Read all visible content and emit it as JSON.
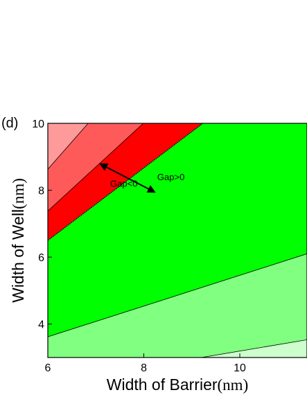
{
  "chart_data": {
    "type": "heatmap",
    "panel_label": "(d)",
    "xlabel": {
      "text": "Width of Barrier",
      "unit": "(nm)"
    },
    "ylabel": {
      "text": "Width of Well",
      "unit": "(nm)"
    },
    "xlim": [
      6,
      11.4
    ],
    "ylim": [
      3,
      10
    ],
    "x_ticks": [
      6,
      8,
      10
    ],
    "y_ticks": [
      4,
      6,
      8,
      10
    ],
    "regions": [
      {
        "id": "region-pale-red",
        "color": "#ff9a9a"
      },
      {
        "id": "region-light-red",
        "color": "#ff5a5a"
      },
      {
        "id": "region-red",
        "color": "#ff0000"
      },
      {
        "id": "region-green",
        "color": "#00ff00"
      },
      {
        "id": "region-light-green",
        "color": "#80ff80"
      },
      {
        "id": "region-pale-green",
        "color": "#ccffcc"
      }
    ],
    "contours": [
      {
        "id": "contour-1",
        "points": [
          [
            6,
            8.63
          ],
          [
            6.84,
            10
          ]
        ]
      },
      {
        "id": "contour-2",
        "points": [
          [
            6,
            7.38
          ],
          [
            7.99,
            10
          ]
        ]
      },
      {
        "id": "contour-gap-zero",
        "points": [
          [
            6,
            6.5
          ],
          [
            9.23,
            10
          ]
        ]
      },
      {
        "id": "contour-3",
        "points": [
          [
            6,
            3.62
          ],
          [
            11.4,
            6.1
          ]
        ]
      },
      {
        "id": "contour-4",
        "points": [
          [
            9.2,
            3.0
          ],
          [
            11.4,
            3.53
          ]
        ]
      }
    ],
    "annotations": [
      {
        "id": "gap-negative-label",
        "text": "Gap<0",
        "x": 7.3,
        "y": 8.1
      },
      {
        "id": "gap-positive-label",
        "text": "Gap>0",
        "x": 8.28,
        "y": 8.3
      }
    ],
    "arrow": {
      "from": [
        7.1,
        8.78
      ],
      "to": [
        8.22,
        7.95
      ]
    }
  }
}
